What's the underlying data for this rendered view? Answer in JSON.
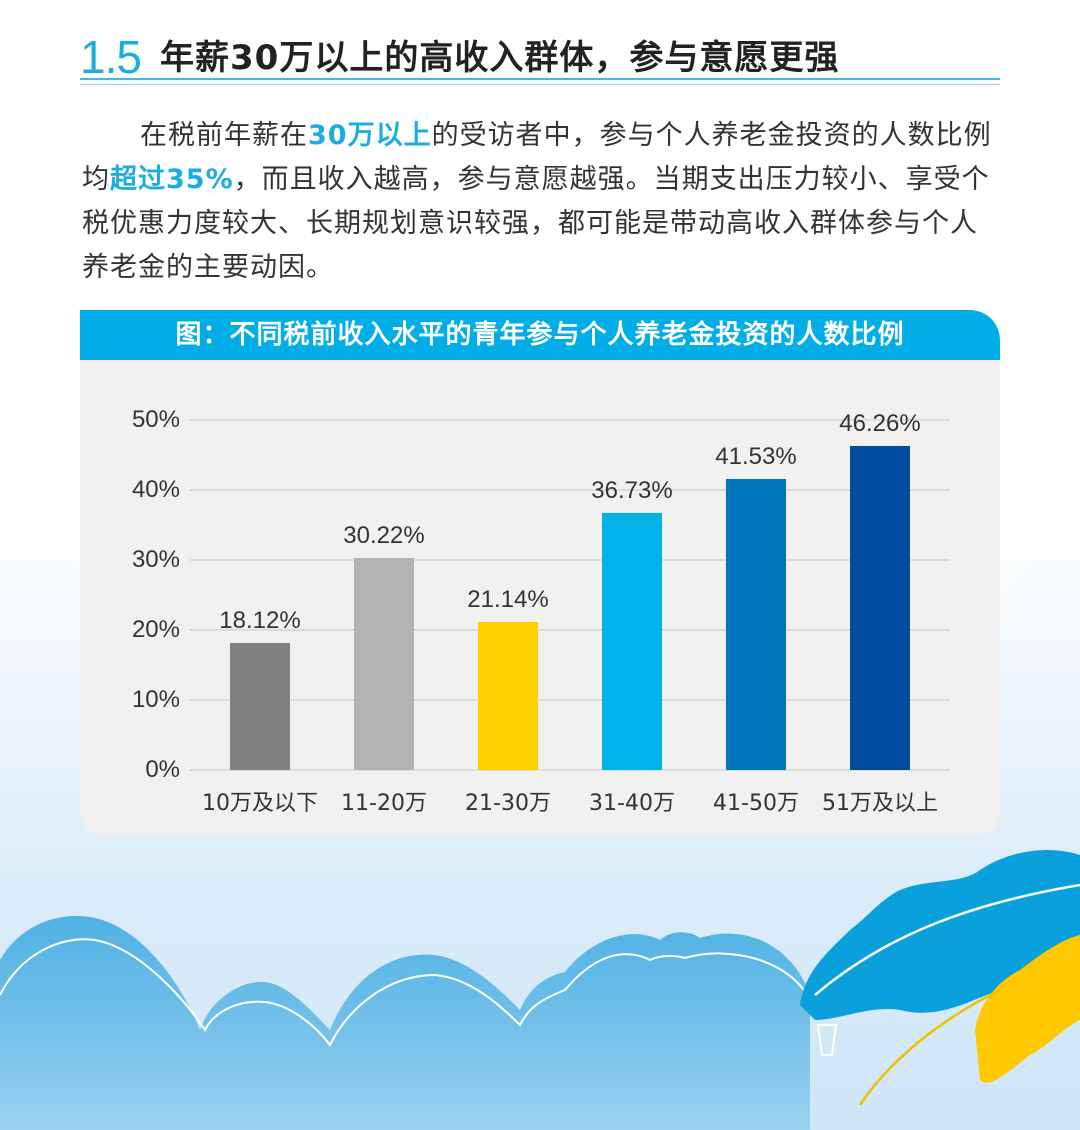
{
  "section": {
    "number": "1.5",
    "title": "年薪30万以上的高收入群体，参与意愿更强"
  },
  "paragraph": {
    "part1": "在税前年薪在",
    "highlight1": "30万以上",
    "part2": "的受访者中，参与个人养老金投资的人数比例均",
    "highlight2": "超过35%",
    "part3": "，而且收入越高，参与意愿越强。当期支出压力较小、享受个税优惠力度较大、长期规划意识较强，都可能是带动高收入群体参与个人养老金的主要动因。"
  },
  "colors": {
    "accent": "#00ade6",
    "highlight_text": "#1aaee0",
    "chart_bg": "#f1f1f1"
  },
  "chart_data": {
    "type": "bar",
    "title": "图：不同税前收入水平的青年参与个人养老金投资的人数比例",
    "categories": [
      "10万及以下",
      "11-20万",
      "21-30万",
      "31-40万",
      "41-50万",
      "51万及以上"
    ],
    "values": [
      18.12,
      30.22,
      21.14,
      36.73,
      41.53,
      46.26
    ],
    "value_labels": [
      "18.12%",
      "30.22%",
      "21.14%",
      "36.73%",
      "41.53%",
      "46.26%"
    ],
    "bar_colors": [
      "#808080",
      "#b3b3b3",
      "#ffd000",
      "#00b4ea",
      "#0077bb",
      "#004da0"
    ],
    "xlabel": "",
    "ylabel": "",
    "ylim": [
      0,
      50
    ],
    "yticks": [
      "0%",
      "10%",
      "20%",
      "30%",
      "40%",
      "50%"
    ],
    "grid": true,
    "legend": "none"
  }
}
